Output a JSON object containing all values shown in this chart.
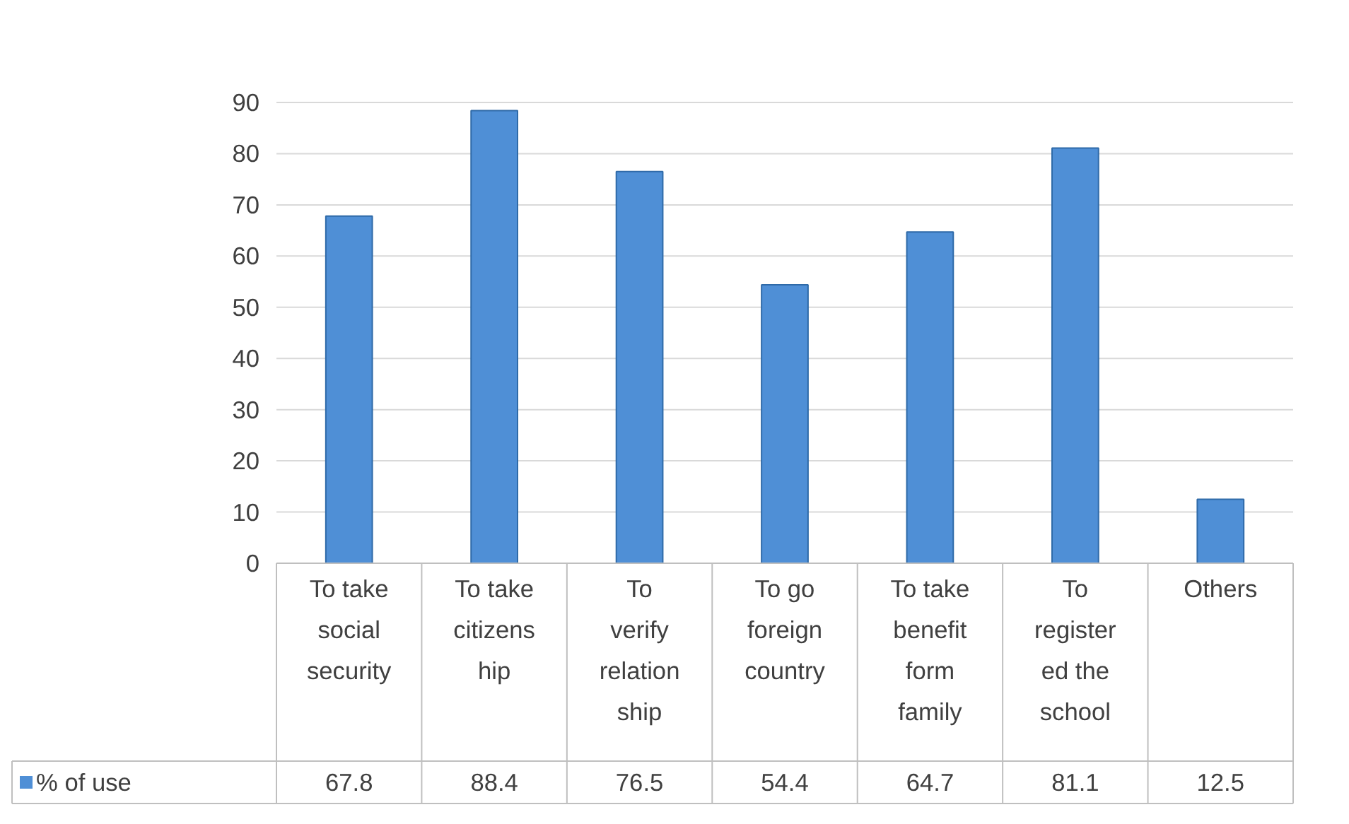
{
  "chart_data": {
    "type": "bar",
    "categories": [
      "To take\nsocial\nsecurity",
      "To take\ncitizens\nhip",
      "To\nverify\nrelation\nship",
      "To go\nforeign\ncountry",
      "To take\nbenefit\nform\nfamily",
      "To\nregister\ned the\nschool",
      "Others"
    ],
    "series": [
      {
        "name": "% of use",
        "color": "#4f8fd6",
        "values": [
          67.8,
          88.4,
          76.5,
          54.4,
          64.7,
          81.1,
          12.5
        ]
      }
    ],
    "ylim": [
      0,
      90
    ],
    "yticks": [
      0,
      10,
      20,
      30,
      40,
      50,
      60,
      70,
      80,
      90
    ],
    "grid": "y",
    "legend": "bottom",
    "data_labels": true
  }
}
